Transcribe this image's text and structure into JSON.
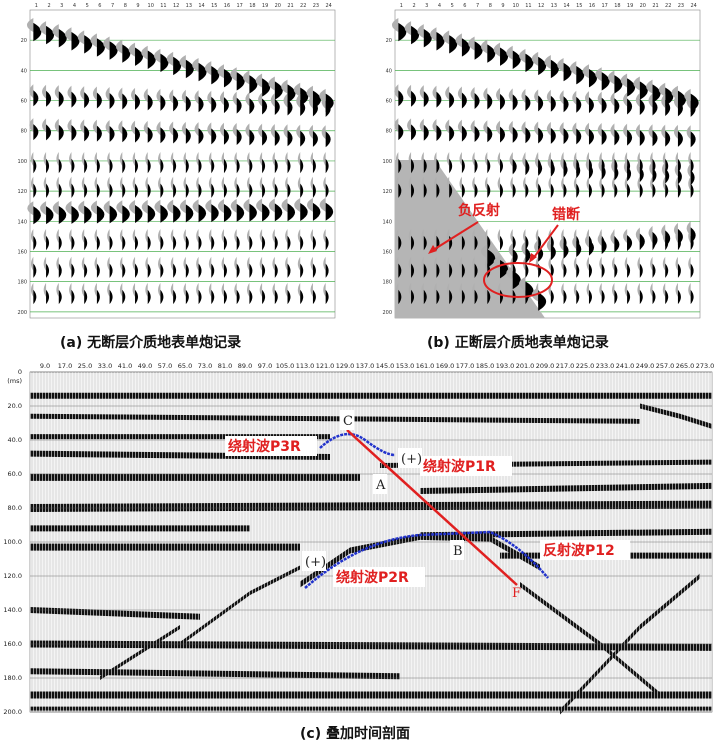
{
  "panel_a": {
    "caption": "(a) 无断层介质地表单炮记录",
    "trace_numbers": [
      "1",
      "2",
      "3",
      "4",
      "5",
      "6",
      "7",
      "8",
      "9",
      "10",
      "11",
      "12",
      "13",
      "14",
      "15",
      "16",
      "17",
      "18",
      "19",
      "20",
      "21",
      "22",
      "23",
      "24"
    ],
    "time_ticks": [
      "20",
      "40",
      "60",
      "80",
      "100",
      "120",
      "140",
      "160",
      "180",
      "200"
    ]
  },
  "panel_b": {
    "caption": "(b) 正断层介质地表单炮记录",
    "trace_numbers": [
      "1",
      "2",
      "3",
      "4",
      "5",
      "6",
      "7",
      "8",
      "9",
      "10",
      "11",
      "12",
      "13",
      "14",
      "15",
      "16",
      "17",
      "18",
      "19",
      "20",
      "21",
      "22",
      "23",
      "24"
    ],
    "time_ticks": [
      "20",
      "40",
      "60",
      "80",
      "100",
      "120",
      "140",
      "160",
      "180",
      "200"
    ],
    "annotations": {
      "negative_reflection": "负反射",
      "offset": "错断"
    }
  },
  "panel_c": {
    "caption": "(c) 叠加时间剖面",
    "x_ticks": [
      "9.0",
      "17.0",
      "25.0",
      "33.0",
      "41.0",
      "49.0",
      "57.0",
      "65.0",
      "73.0",
      "81.0",
      "89.0",
      "97.0",
      "105.0",
      "113.0",
      "121.0",
      "129.0",
      "137.0",
      "145.0",
      "153.0",
      "161.0",
      "169.0",
      "177.0",
      "185.0",
      "193.0",
      "201.0",
      "209.0",
      "217.0",
      "225.0",
      "233.0",
      "241.0",
      "249.0",
      "257.0",
      "265.0",
      "273.0"
    ],
    "y_unit": "(ms)",
    "y_ticks": [
      "0",
      "20.0",
      "40.0",
      "60.0",
      "80.0",
      "100.0",
      "120.0",
      "140.0",
      "160.0",
      "180.0",
      "200.0"
    ],
    "annotations": {
      "p3r": "绕射波P3R",
      "p1r": "绕射波P1R",
      "p2r": "绕射波P2R",
      "p12": "反射波P12",
      "C": "C",
      "A": "A",
      "B": "B",
      "F": "F",
      "plus1": "(+)",
      "plus2": "(+)"
    }
  }
}
